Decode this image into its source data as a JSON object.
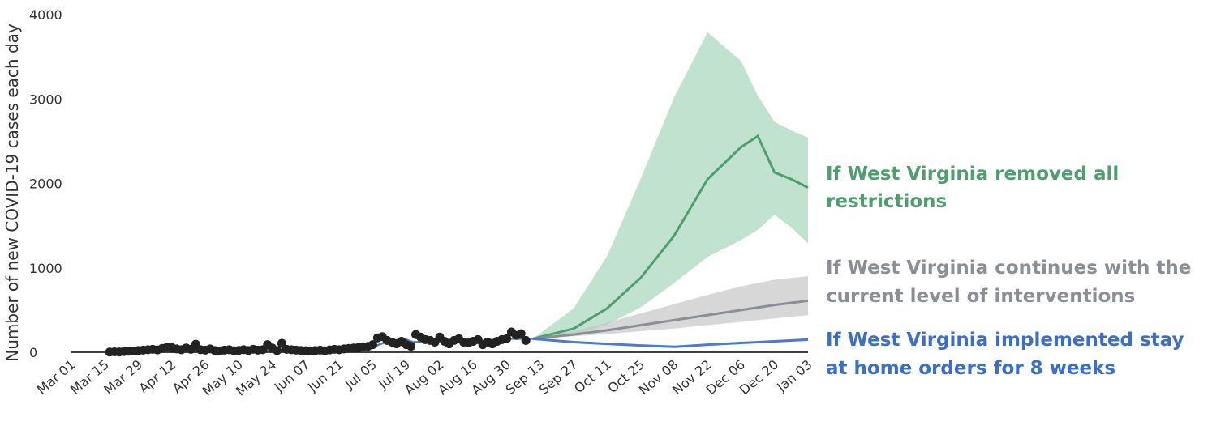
{
  "chart_data": {
    "type": "line",
    "title": "",
    "xlabel": "",
    "ylabel": "Number of new COVID-19 cases each day",
    "x_ticks": [
      "Mar 01",
      "Mar 15",
      "Mar 29",
      "Apr 12",
      "Apr 26",
      "May 10",
      "May 24",
      "Jun 07",
      "Jun 21",
      "Jul 05",
      "Jul 19",
      "Aug 02",
      "Aug 16",
      "Aug 30",
      "Sep 13",
      "Sep 27",
      "Oct 11",
      "Oct 25",
      "Nov 08",
      "Nov 22",
      "Dec 06",
      "Dec 20",
      "Jan 03"
    ],
    "y_ticks": [
      0,
      1000,
      2000,
      3000,
      4000
    ],
    "xlim": [
      "2020-03-01",
      "2021-01-03"
    ],
    "ylim": [
      0,
      4000
    ],
    "grid": false,
    "observed": {
      "name": "",
      "color": "#222222",
      "points": [
        [
          "2020-03-17",
          2
        ],
        [
          "2020-03-19",
          5
        ],
        [
          "2020-03-21",
          3
        ],
        [
          "2020-03-23",
          8
        ],
        [
          "2020-03-25",
          12
        ],
        [
          "2020-03-27",
          15
        ],
        [
          "2020-03-29",
          20
        ],
        [
          "2020-03-31",
          25
        ],
        [
          "2020-04-02",
          30
        ],
        [
          "2020-04-04",
          35
        ],
        [
          "2020-04-06",
          28
        ],
        [
          "2020-04-08",
          45
        ],
        [
          "2020-04-10",
          60
        ],
        [
          "2020-04-12",
          55
        ],
        [
          "2020-04-14",
          40
        ],
        [
          "2020-04-16",
          30
        ],
        [
          "2020-04-18",
          50
        ],
        [
          "2020-04-20",
          35
        ],
        [
          "2020-04-22",
          95
        ],
        [
          "2020-04-24",
          30
        ],
        [
          "2020-04-26",
          25
        ],
        [
          "2020-04-28",
          40
        ],
        [
          "2020-04-30",
          20
        ],
        [
          "2020-05-02",
          15
        ],
        [
          "2020-05-04",
          25
        ],
        [
          "2020-05-06",
          30
        ],
        [
          "2020-05-08",
          18
        ],
        [
          "2020-05-10",
          22
        ],
        [
          "2020-05-12",
          30
        ],
        [
          "2020-05-14",
          20
        ],
        [
          "2020-05-16",
          35
        ],
        [
          "2020-05-18",
          25
        ],
        [
          "2020-05-20",
          30
        ],
        [
          "2020-05-22",
          90
        ],
        [
          "2020-05-24",
          50
        ],
        [
          "2020-05-26",
          20
        ],
        [
          "2020-05-28",
          105
        ],
        [
          "2020-05-30",
          35
        ],
        [
          "2020-06-01",
          30
        ],
        [
          "2020-06-03",
          25
        ],
        [
          "2020-06-05",
          20
        ],
        [
          "2020-06-07",
          18
        ],
        [
          "2020-06-09",
          15
        ],
        [
          "2020-06-11",
          20
        ],
        [
          "2020-06-13",
          25
        ],
        [
          "2020-06-15",
          18
        ],
        [
          "2020-06-17",
          28
        ],
        [
          "2020-06-19",
          35
        ],
        [
          "2020-06-21",
          30
        ],
        [
          "2020-06-23",
          40
        ],
        [
          "2020-06-25",
          45
        ],
        [
          "2020-06-27",
          50
        ],
        [
          "2020-06-29",
          55
        ],
        [
          "2020-07-01",
          65
        ],
        [
          "2020-07-03",
          70
        ],
        [
          "2020-07-05",
          90
        ],
        [
          "2020-07-07",
          170
        ],
        [
          "2020-07-09",
          185
        ],
        [
          "2020-07-11",
          140
        ],
        [
          "2020-07-13",
          120
        ],
        [
          "2020-07-15",
          100
        ],
        [
          "2020-07-17",
          130
        ],
        [
          "2020-07-19",
          90
        ],
        [
          "2020-07-21",
          70
        ],
        [
          "2020-07-23",
          210
        ],
        [
          "2020-07-25",
          180
        ],
        [
          "2020-07-27",
          150
        ],
        [
          "2020-07-29",
          140
        ],
        [
          "2020-07-31",
          120
        ],
        [
          "2020-08-02",
          180
        ],
        [
          "2020-08-04",
          130
        ],
        [
          "2020-08-06",
          100
        ],
        [
          "2020-08-08",
          140
        ],
        [
          "2020-08-10",
          160
        ],
        [
          "2020-08-12",
          120
        ],
        [
          "2020-08-14",
          110
        ],
        [
          "2020-08-16",
          130
        ],
        [
          "2020-08-18",
          150
        ],
        [
          "2020-08-20",
          90
        ],
        [
          "2020-08-22",
          120
        ],
        [
          "2020-08-24",
          100
        ],
        [
          "2020-08-26",
          130
        ],
        [
          "2020-08-28",
          150
        ],
        [
          "2020-08-30",
          160
        ],
        [
          "2020-09-01",
          240
        ],
        [
          "2020-09-03",
          200
        ],
        [
          "2020-09-05",
          220
        ],
        [
          "2020-09-07",
          140
        ]
      ]
    },
    "scenarios": [
      {
        "name": "If West Virginia removed all restrictions",
        "color": "#4e9e6f",
        "band_color": "#9ed3b4",
        "x": [
          "2020-09-10",
          "2020-09-27",
          "2020-10-11",
          "2020-10-25",
          "2020-11-08",
          "2020-11-22",
          "2020-12-06",
          "2020-12-13",
          "2020-12-20",
          "2020-12-27",
          "2021-01-03"
        ],
        "values": [
          160,
          280,
          520,
          880,
          1380,
          2050,
          2430,
          2560,
          2130,
          2050,
          1950
        ],
        "lower": [
          160,
          200,
          330,
          530,
          820,
          1130,
          1330,
          1450,
          1630,
          1480,
          1290
        ],
        "upper": [
          160,
          520,
          1140,
          2050,
          3020,
          3790,
          3450,
          3040,
          2730,
          2630,
          2540
        ]
      },
      {
        "name": "If West Virginia continues with the current level of interventions",
        "color": "#8a8f96",
        "band_color": "#c2c2c2",
        "x": [
          "2020-09-10",
          "2020-09-27",
          "2020-10-11",
          "2020-10-25",
          "2020-11-08",
          "2020-11-22",
          "2020-12-06",
          "2020-12-20",
          "2021-01-03"
        ],
        "values": [
          160,
          210,
          260,
          320,
          380,
          440,
          500,
          560,
          610
        ],
        "lower": [
          160,
          190,
          215,
          250,
          280,
          320,
          360,
          400,
          440
        ],
        "upper": [
          160,
          250,
          350,
          460,
          570,
          680,
          780,
          860,
          900
        ]
      },
      {
        "name": "If West Virginia implemented stay at home orders for 8 weeks",
        "color": "#4a79d6",
        "band_color": "#a9c0ee",
        "x": [
          "2020-09-10",
          "2020-09-27",
          "2020-10-11",
          "2020-10-25",
          "2020-11-08",
          "2020-11-11",
          "2020-11-22",
          "2020-12-06",
          "2020-12-20",
          "2021-01-03"
        ],
        "values": [
          160,
          120,
          100,
          80,
          65,
          70,
          90,
          110,
          130,
          150
        ],
        "lower": [
          160,
          110,
          90,
          72,
          58,
          62,
          82,
          100,
          118,
          136
        ],
        "upper": [
          160,
          130,
          110,
          88,
          72,
          78,
          98,
          120,
          142,
          164
        ]
      }
    ],
    "fit_line": {
      "color": "#4a79d6",
      "x": [
        "2020-03-15",
        "2020-03-29",
        "2020-04-12",
        "2020-04-26",
        "2020-05-10",
        "2020-05-24",
        "2020-06-07",
        "2020-06-21",
        "2020-07-05",
        "2020-07-12",
        "2020-07-19",
        "2020-07-22",
        "2020-08-02",
        "2020-08-16",
        "2020-08-30",
        "2020-09-10"
      ],
      "values": [
        2,
        15,
        40,
        35,
        25,
        30,
        25,
        30,
        60,
        140,
        150,
        120,
        130,
        130,
        160,
        160
      ]
    }
  },
  "annotations": {
    "green_line1": "If West Virginia removed all",
    "green_line2": "restrictions",
    "gray_line1": "If West Virginia continues with the",
    "gray_line2": "current level of interventions",
    "blue_line1": "If West Virginia implemented stay",
    "blue_line2": "at home orders for 8 weeks"
  }
}
